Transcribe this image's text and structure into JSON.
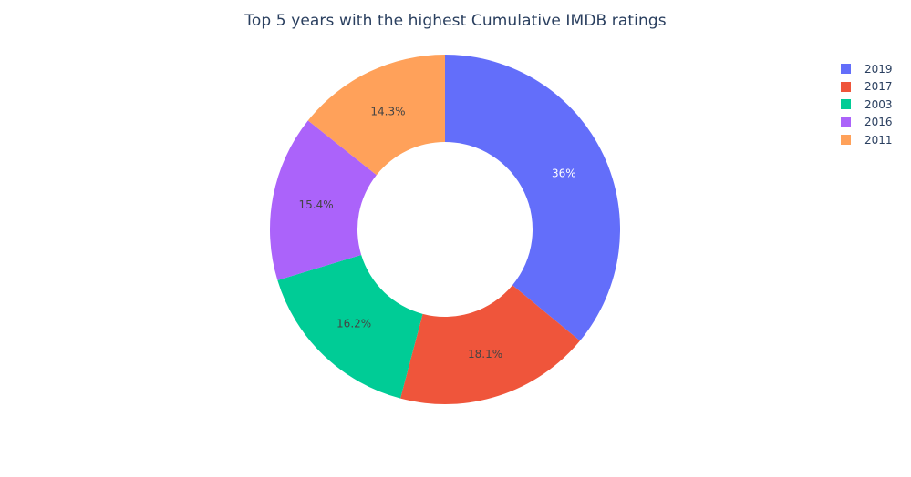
{
  "chart_data": {
    "type": "pie",
    "hole": 0.5,
    "title": "Top 5 years with the highest Cumulative IMDB ratings",
    "legend_position": "top-right",
    "labels": [
      "2019",
      "2017",
      "2003",
      "2016",
      "2011"
    ],
    "values": [
      36.0,
      18.1,
      16.2,
      15.4,
      14.3
    ],
    "value_labels": [
      "36%",
      "18.1%",
      "16.2%",
      "15.4%",
      "14.3%"
    ],
    "colors": [
      "#636efa",
      "#ef553b",
      "#00cc96",
      "#ab63fa",
      "#ffa15a"
    ],
    "label_colors": [
      "#ffffff",
      "#444444",
      "#444444",
      "#444444",
      "#444444"
    ]
  }
}
